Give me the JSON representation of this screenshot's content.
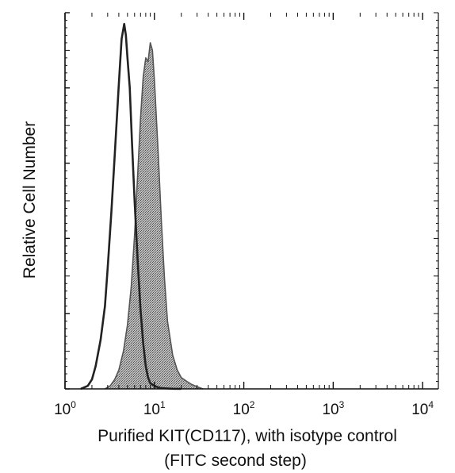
{
  "chart_data": {
    "type": "area",
    "xscale": "log",
    "xlim": [
      1,
      15000
    ],
    "ylim": [
      0,
      100
    ],
    "grid": false,
    "x_ticks": [
      {
        "base": "10",
        "exp": "0",
        "value": 1
      },
      {
        "base": "10",
        "exp": "1",
        "value": 10
      },
      {
        "base": "10",
        "exp": "2",
        "value": 100
      },
      {
        "base": "10",
        "exp": "3",
        "value": 1000
      },
      {
        "base": "10",
        "exp": "4",
        "value": 10000
      }
    ],
    "y_ticks": [
      0,
      20,
      40,
      60,
      80,
      100
    ],
    "xlabel_line1": "Purified KIT(CD117), with isotype control",
    "xlabel_line2": "(FITC second step)",
    "ylabel": "Relative Cell Number",
    "series": [
      {
        "style": "outline",
        "color": "#222222",
        "x": [
          1.5,
          1.8,
          2.0,
          2.2,
          2.5,
          2.8,
          3.0,
          3.3,
          3.6,
          4.0,
          4.3,
          4.6,
          4.8,
          5.0,
          5.3,
          5.6,
          6.0,
          6.5,
          7.0,
          7.5,
          8.0,
          8.5,
          9.0,
          10.0,
          11.0,
          12.0,
          14.0,
          16.0,
          20.0
        ],
        "y": [
          0,
          0.8,
          2.5,
          6,
          13,
          22,
          32,
          47,
          62,
          81,
          93,
          97,
          94,
          88,
          80,
          66,
          50,
          34,
          21,
          12,
          6,
          3,
          1.5,
          0.8,
          0.4,
          0.2,
          0.1,
          0.05,
          0
        ]
      },
      {
        "style": "filled",
        "color": "#555555",
        "x": [
          2.8,
          3.2,
          3.6,
          4.0,
          4.5,
          5.0,
          5.5,
          6.0,
          6.5,
          7.0,
          7.5,
          8.0,
          8.5,
          9.0,
          9.5,
          10.0,
          11.0,
          12.0,
          13.0,
          14.0,
          16.0,
          18.0,
          20.0,
          23.0,
          26.0,
          30.0,
          35.0
        ],
        "y": [
          0,
          0.8,
          2.5,
          5,
          10,
          17,
          27,
          41,
          57,
          72,
          83,
          88,
          87,
          92,
          90,
          82,
          63,
          44,
          29,
          18,
          9,
          5,
          3,
          2,
          1.2,
          0.6,
          0
        ]
      }
    ]
  }
}
